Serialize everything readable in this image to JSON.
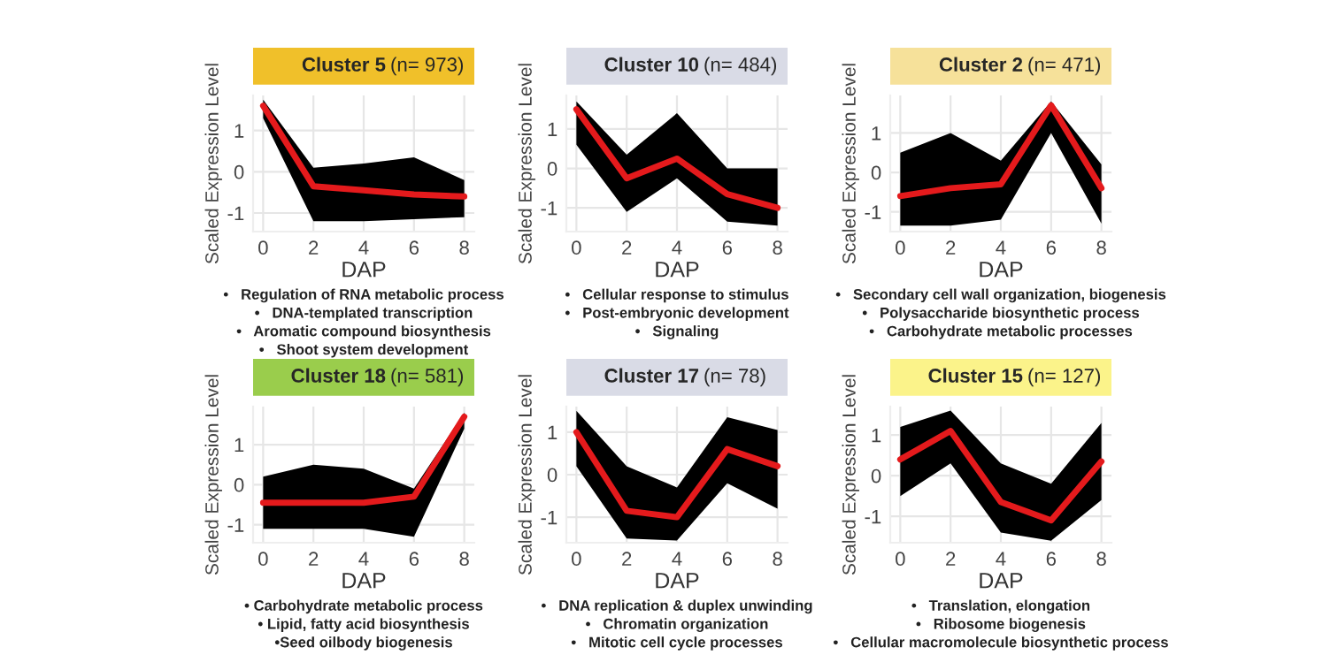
{
  "chart_data": [
    {
      "type": "line",
      "title": "Cluster 5",
      "subtitle": "(n= 973)",
      "xlabel": "DAP",
      "ylabel": "Scaled Expression Level",
      "x": [
        0,
        2,
        4,
        6,
        8
      ],
      "xlim": [
        -0.4,
        8.4
      ],
      "xticks": [
        0,
        2,
        4,
        6,
        8
      ],
      "ylim": [
        -1.45,
        1.85
      ],
      "yticks": [
        -1,
        0,
        1
      ],
      "grid": true,
      "series": [
        {
          "color": "#e41a1c",
          "values": [
            1.6,
            -0.35,
            -0.45,
            -0.55,
            -0.6
          ],
          "lower": [
            1.3,
            -1.2,
            -1.2,
            -1.15,
            -1.1
          ],
          "upper": [
            1.75,
            0.1,
            0.2,
            0.35,
            -0.2
          ]
        }
      ],
      "annotations": [
        "•   Regulation of RNA metabolic process",
        "•   DNA-templated transcription",
        "•   Aromatic compound biosynthesis",
        "•   Shoot system development"
      ]
    },
    {
      "type": "line",
      "title": "Cluster 10",
      "subtitle": "(n= 484)",
      "xlabel": "DAP",
      "ylabel": "Scaled Expression Level",
      "x": [
        0,
        2,
        4,
        6,
        8
      ],
      "xlim": [
        -0.4,
        8.4
      ],
      "xticks": [
        0,
        2,
        4,
        6,
        8
      ],
      "ylim": [
        -1.6,
        1.85
      ],
      "yticks": [
        -1,
        0,
        1
      ],
      "grid": true,
      "series": [
        {
          "color": "#e41a1c",
          "values": [
            1.5,
            -0.25,
            0.25,
            -0.65,
            -1.0
          ],
          "lower": [
            0.6,
            -1.1,
            -0.25,
            -1.35,
            -1.45
          ],
          "upper": [
            1.7,
            0.35,
            1.4,
            0.0,
            0.0
          ]
        }
      ],
      "annotations": [
        "•   Cellular response to stimulus",
        "•   Post-embryonic development",
        "•   Signaling"
      ]
    },
    {
      "type": "line",
      "title": "Cluster 2",
      "subtitle": "(n= 471)",
      "xlabel": "DAP",
      "ylabel": "Scaled Expression Level",
      "x": [
        0,
        2,
        4,
        6,
        8
      ],
      "xlim": [
        -0.4,
        8.4
      ],
      "xticks": [
        0,
        2,
        4,
        6,
        8
      ],
      "ylim": [
        -1.5,
        1.95
      ],
      "yticks": [
        -1,
        0,
        1
      ],
      "grid": true,
      "series": [
        {
          "color": "#e41a1c",
          "values": [
            -0.6,
            -0.4,
            -0.3,
            1.7,
            -0.4
          ],
          "lower": [
            -1.35,
            -1.35,
            -1.2,
            1.0,
            -1.3
          ],
          "upper": [
            0.5,
            1.0,
            0.3,
            1.8,
            0.2
          ]
        }
      ],
      "annotations": [
        "•   Secondary cell wall organization, biogenesis",
        "•   Polysaccharide biosynthetic process",
        "•   Carbohydrate metabolic processes"
      ]
    },
    {
      "type": "line",
      "title": "Cluster 18",
      "subtitle": "(n= 581)",
      "xlabel": "DAP",
      "ylabel": "Scaled Expression Level",
      "x": [
        0,
        2,
        4,
        6,
        8
      ],
      "xlim": [
        -0.4,
        8.4
      ],
      "xticks": [
        0,
        2,
        4,
        6,
        8
      ],
      "ylim": [
        -1.45,
        1.95
      ],
      "yticks": [
        -1,
        0,
        1
      ],
      "grid": true,
      "series": [
        {
          "color": "#e41a1c",
          "values": [
            -0.45,
            -0.45,
            -0.45,
            -0.3,
            1.7
          ],
          "lower": [
            -1.1,
            -1.1,
            -1.1,
            -1.3,
            1.4
          ],
          "upper": [
            0.2,
            0.5,
            0.4,
            -0.1,
            1.8
          ]
        }
      ],
      "annotations": [
        "• Carbohydrate metabolic process",
        "• Lipid, fatty acid biosynthesis",
        "•Seed oilbody biogenesis"
      ]
    },
    {
      "type": "line",
      "title": "Cluster 17",
      "subtitle": "(n= 78)",
      "xlabel": "DAP",
      "ylabel": "Scaled Expression Level",
      "x": [
        0,
        2,
        4,
        6,
        8
      ],
      "xlim": [
        -0.4,
        8.4
      ],
      "xticks": [
        0,
        2,
        4,
        6,
        8
      ],
      "ylim": [
        -1.6,
        1.6
      ],
      "yticks": [
        -1,
        0,
        1
      ],
      "grid": true,
      "series": [
        {
          "color": "#e41a1c",
          "values": [
            1.0,
            -0.85,
            -1.0,
            0.6,
            0.2
          ],
          "lower": [
            0.2,
            -1.5,
            -1.55,
            -0.2,
            -0.8
          ],
          "upper": [
            1.5,
            0.2,
            -0.3,
            1.35,
            1.05
          ]
        }
      ],
      "annotations": [
        "•   DNA replication & duplex unwinding",
        "•   Chromatin organization",
        "•   Mitotic cell cycle processes"
      ]
    },
    {
      "type": "line",
      "title": "Cluster 15",
      "subtitle": "(n= 127)",
      "xlabel": "DAP",
      "ylabel": "Scaled Expression Level",
      "x": [
        0,
        2,
        4,
        6,
        8
      ],
      "xlim": [
        -0.4,
        8.4
      ],
      "xticks": [
        0,
        2,
        4,
        6,
        8
      ],
      "ylim": [
        -1.65,
        1.7
      ],
      "yticks": [
        -1,
        0,
        1
      ],
      "grid": true,
      "series": [
        {
          "color": "#e41a1c",
          "values": [
            0.4,
            1.1,
            -0.65,
            -1.1,
            0.35
          ],
          "lower": [
            -0.5,
            0.3,
            -1.4,
            -1.6,
            -0.6
          ],
          "upper": [
            1.2,
            1.6,
            0.3,
            -0.2,
            1.3
          ]
        }
      ],
      "annotations": [
        "•   Translation, elongation",
        "•   Ribosome biogenesis",
        "•   Cellular macromolecule biosynthetic process"
      ]
    }
  ]
}
